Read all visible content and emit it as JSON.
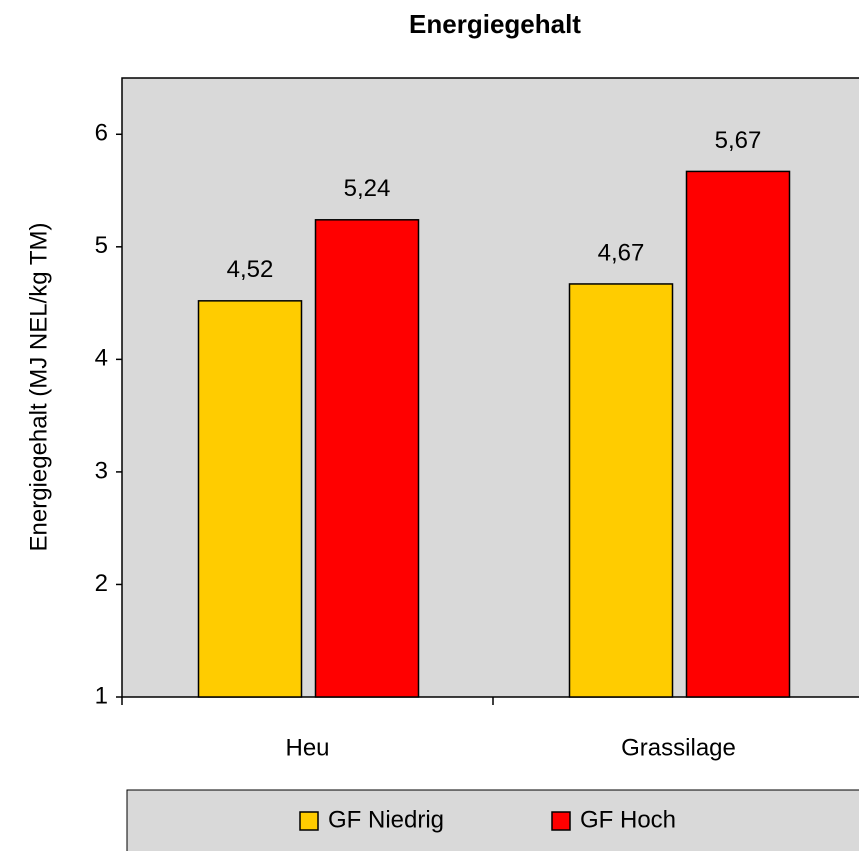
{
  "chart_data": {
    "type": "bar",
    "title": "Energiegehalt",
    "y_label": "Energiegehalt (MJ NEL/kg TM)",
    "categories": [
      "Heu",
      "Grassilage"
    ],
    "series": [
      {
        "name": "GF Niedrig",
        "color": "#ffcc00",
        "values": [
          4.52,
          4.67
        ],
        "value_labels": [
          "4,52",
          "4,67"
        ]
      },
      {
        "name": "GF Hoch",
        "color": "#ff0000",
        "values": [
          5.24,
          5.67
        ],
        "value_labels": [
          "5,24",
          "5,67"
        ]
      }
    ],
    "ylim": [
      1,
      6.5
    ],
    "yticks": [
      1,
      2,
      3,
      4,
      5,
      6
    ]
  }
}
